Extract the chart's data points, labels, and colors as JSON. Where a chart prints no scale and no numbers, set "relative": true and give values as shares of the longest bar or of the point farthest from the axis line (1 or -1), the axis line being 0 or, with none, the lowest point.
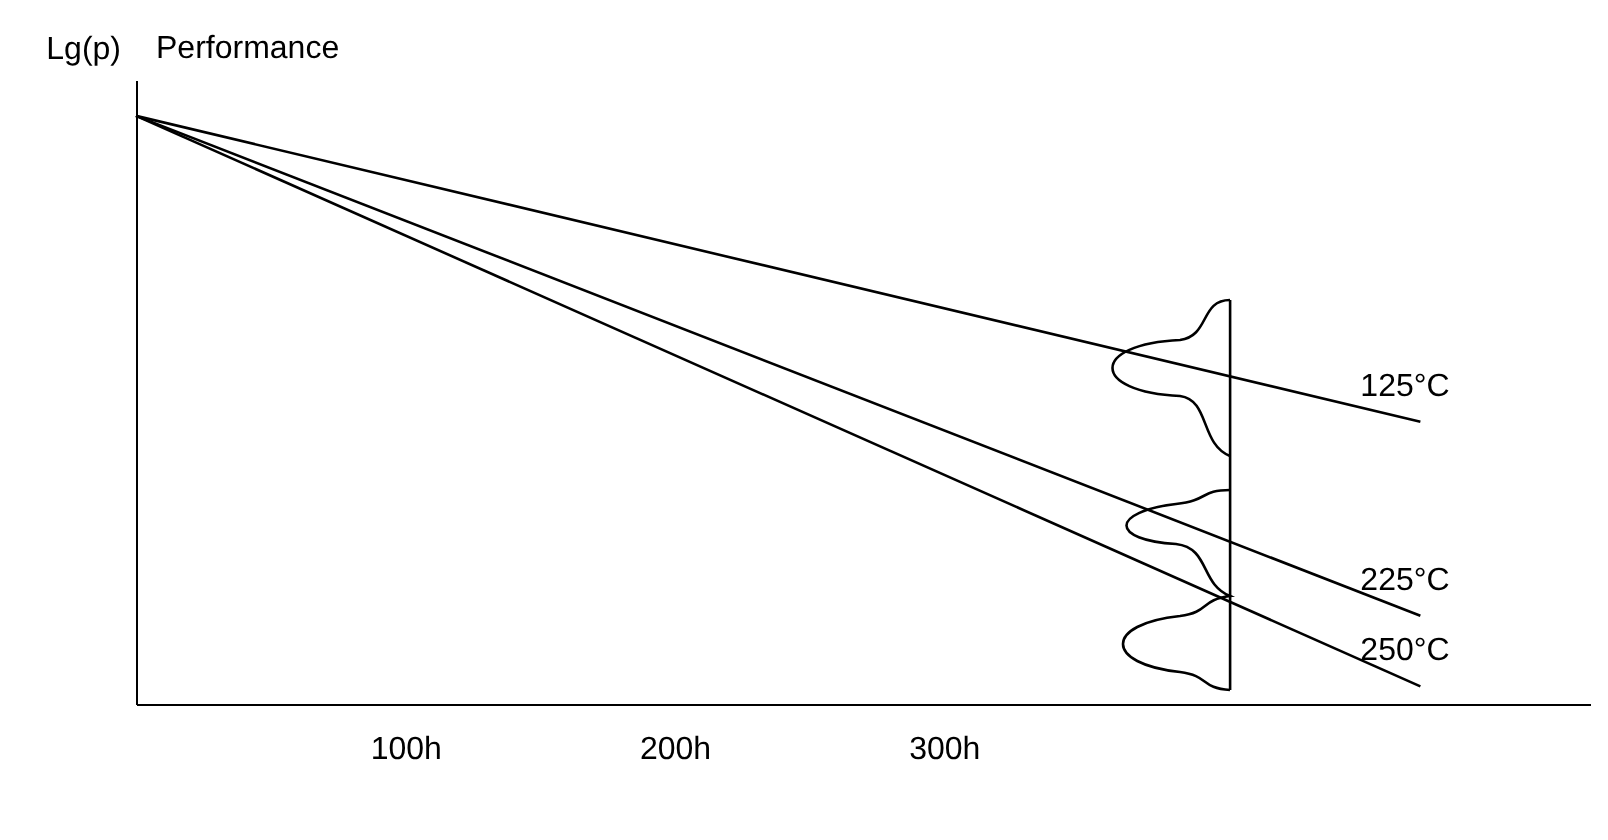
{
  "chart_data": {
    "type": "line",
    "title": "Performance",
    "ylabel": "Lg(p)",
    "relative": true,
    "legend": false,
    "grid": false,
    "marker": "none",
    "line_style": "solid",
    "x": [
      0,
      477
    ],
    "xlim": [
      0,
      540
    ],
    "xticks": [
      {
        "value": 100,
        "label": "100h"
      },
      {
        "value": 200,
        "label": "200h"
      },
      {
        "value": 300,
        "label": "300h"
      }
    ],
    "series": [
      {
        "name": "125°C",
        "color": "#000000",
        "values": [
          1,
          0.48
        ]
      },
      {
        "name": "225°C",
        "color": "#000000",
        "values": [
          1,
          0.15
        ]
      },
      {
        "name": "250°C",
        "color": "#000000",
        "values": [
          1,
          0.03
        ]
      }
    ]
  }
}
